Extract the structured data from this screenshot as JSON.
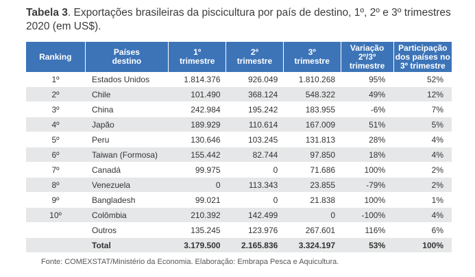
{
  "caption": {
    "bold": "Tabela 3",
    "text": ". Exportações brasileiras da piscicultura por país de destino, 1º, 2º e 3º trimestres 2020 (em US$)."
  },
  "table": {
    "headers": {
      "ranking": "Ranking",
      "paises_l1": "Países",
      "paises_l2": "destino",
      "t1_l1": "1º",
      "t1_l2": "trimestre",
      "t2_l1": "2º",
      "t2_l2": "trimestre",
      "t3_l1": "3º",
      "t3_l2": "trimestre",
      "var_l1": "Variação",
      "var_l2": "2º/3º",
      "var_l3": "trimestre",
      "part_l1": "Participação",
      "part_l2": "dos países no",
      "part_l3": "3º trimestre"
    },
    "rows": [
      {
        "rank": "1º",
        "pais": "Estados Unidos",
        "t1": "1.814.376",
        "t2": "926.049",
        "t3": "1.810.268",
        "var": "95%",
        "part": "52%"
      },
      {
        "rank": "2º",
        "pais": "Chile",
        "t1": "101.490",
        "t2": "368.124",
        "t3": "548.322",
        "var": "49%",
        "part": "12%"
      },
      {
        "rank": "3º",
        "pais": "China",
        "t1": "242.984",
        "t2": "195.242",
        "t3": "183.955",
        "var": "-6%",
        "part": "7%"
      },
      {
        "rank": "4º",
        "pais": "Japão",
        "t1": "189.929",
        "t2": "110.614",
        "t3": "167.009",
        "var": "51%",
        "part": "5%"
      },
      {
        "rank": "5º",
        "pais": "Peru",
        "t1": "130.646",
        "t2": "103.245",
        "t3": "131.813",
        "var": "28%",
        "part": "4%"
      },
      {
        "rank": "6º",
        "pais": "Taiwan (Formosa)",
        "t1": "155.442",
        "t2": "82.744",
        "t3": "97.850",
        "var": "18%",
        "part": "4%"
      },
      {
        "rank": "7º",
        "pais": "Canadá",
        "t1": "99.975",
        "t2": "0",
        "t3": "71.686",
        "var": "100%",
        "part": "2%"
      },
      {
        "rank": "8º",
        "pais": "Venezuela",
        "t1": "0",
        "t2": "113.343",
        "t3": "23.855",
        "var": "-79%",
        "part": "2%"
      },
      {
        "rank": "9º",
        "pais": "Bangladesh",
        "t1": "99.021",
        "t2": "0",
        "t3": "21.838",
        "var": "100%",
        "part": "1%"
      },
      {
        "rank": "10º",
        "pais": "Colômbia",
        "t1": "210.392",
        "t2": "142.499",
        "t3": "0",
        "var": "-100%",
        "part": "4%"
      },
      {
        "rank": "",
        "pais": "Outros",
        "t1": "135.245",
        "t2": "123.976",
        "t3": "267.601",
        "var": "116%",
        "part": "6%"
      }
    ],
    "total": {
      "rank": "",
      "pais": "Total",
      "t1": "3.179.500",
      "t2": "2.165.836",
      "t3": "3.324.197",
      "var": "53%",
      "part": "100%"
    }
  },
  "source": "Fonte: COMEXSTAT/Ministério da Economia. Elaboração: Embrapa Pesca e Aquicultura.",
  "colors": {
    "header_bg": "#3d74b8",
    "stripe": "#e6e7e8"
  }
}
